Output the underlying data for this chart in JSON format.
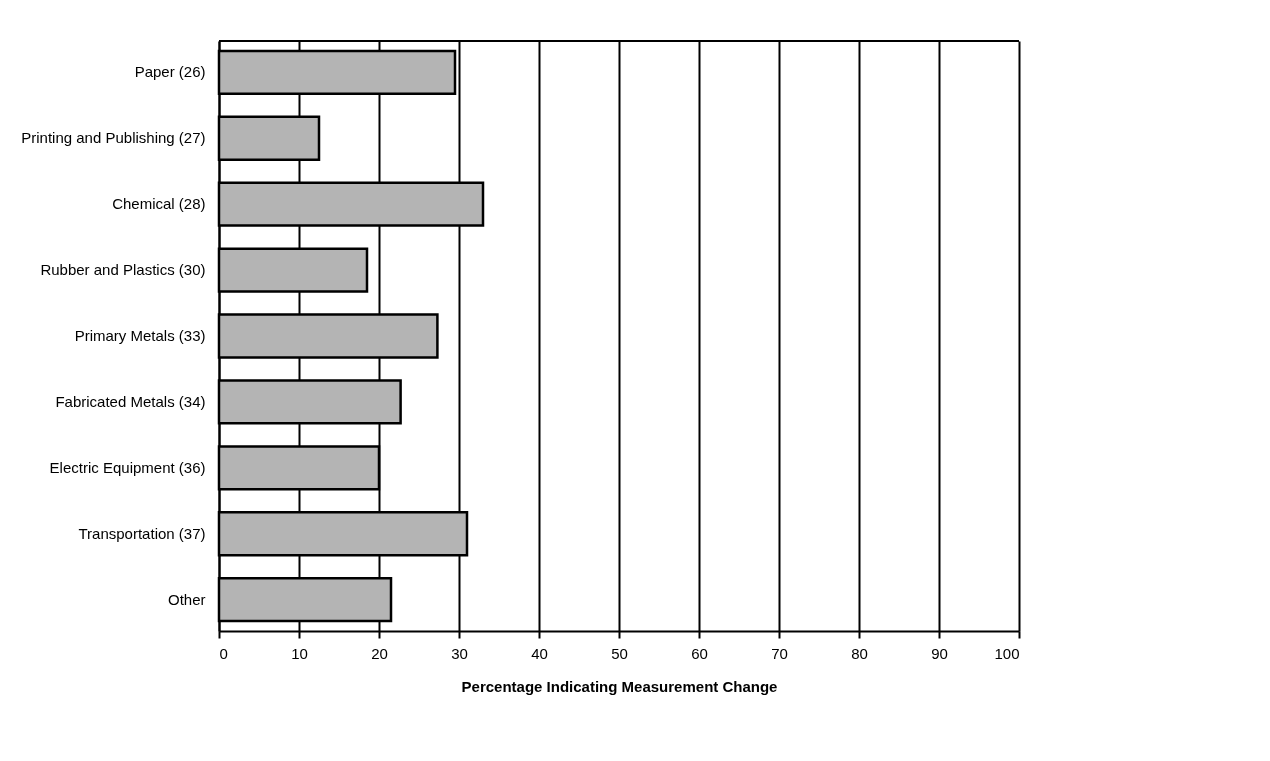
{
  "chart_data": {
    "type": "bar",
    "orientation": "horizontal",
    "xlabel": "Percentage Indicating Measurement Change",
    "categories": [
      "Paper (26)",
      "Printing and Publishing (27)",
      "Chemical (28)",
      "Rubber and Plastics (30)",
      "Primary Metals (33)",
      "Fabricated Metals (34)",
      "Electric Equipment (36)",
      "Transportation (37)",
      "Other"
    ],
    "values": [
      29.5,
      12.5,
      33,
      18.5,
      27.3,
      22.7,
      20,
      31,
      21.5
    ],
    "color": "#b4b4b4",
    "xlim": [
      0,
      100
    ],
    "xticks": [
      0,
      10,
      20,
      30,
      40,
      50,
      60,
      70,
      80,
      90,
      100
    ],
    "grid": "x"
  }
}
